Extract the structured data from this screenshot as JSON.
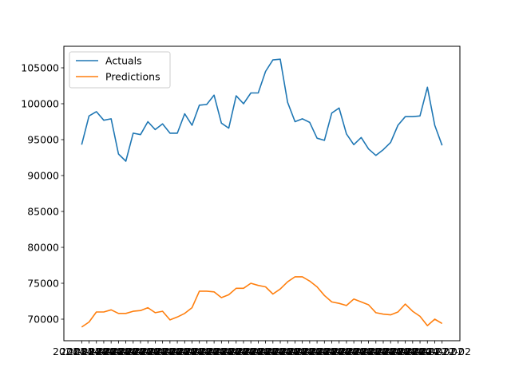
{
  "chart_data": {
    "type": "line",
    "title": "",
    "xlabel": "",
    "ylabel": "",
    "ylim": [
      67000,
      108000
    ],
    "yticks": [
      70000,
      75000,
      80000,
      85000,
      90000,
      95000,
      100000,
      105000
    ],
    "ytick_labels": [
      "70000",
      "75000",
      "80000",
      "85000",
      "90000",
      "95000",
      "100000",
      "105000"
    ],
    "x_tick_text": "2024-12-02",
    "x_tick_labels_overlapping": true,
    "grid": false,
    "legend": "top-left",
    "series": [
      {
        "name": "Actuals",
        "color": "#1f77b4",
        "values": [
          94300,
          98300,
          98900,
          97700,
          97900,
          93000,
          92000,
          95900,
          95700,
          97500,
          96400,
          97200,
          95900,
          95900,
          98600,
          97000,
          99800,
          99900,
          101200,
          97300,
          96600,
          101100,
          100000,
          101500,
          101500,
          104500,
          106100,
          106200,
          100200,
          97500,
          97900,
          97400,
          95200,
          94900,
          98700,
          99400,
          95800,
          94300,
          95300,
          93700,
          92800,
          93600,
          94600,
          97000,
          98200,
          98200,
          98300,
          102300,
          97000,
          94200
        ]
      },
      {
        "name": "Predictions",
        "color": "#ff7f0e",
        "values": [
          68900,
          69600,
          71000,
          71000,
          71300,
          70800,
          70800,
          71100,
          71200,
          71600,
          70900,
          71100,
          69900,
          70300,
          70800,
          71600,
          73900,
          73900,
          73800,
          73000,
          73400,
          74300,
          74300,
          75000,
          74700,
          74500,
          73500,
          74200,
          75200,
          75900,
          75900,
          75300,
          74500,
          73300,
          72400,
          72200,
          71900,
          72800,
          72400,
          72000,
          70900,
          70700,
          70600,
          71000,
          72100,
          71100,
          70400,
          69100,
          70000,
          69400
        ]
      }
    ]
  }
}
